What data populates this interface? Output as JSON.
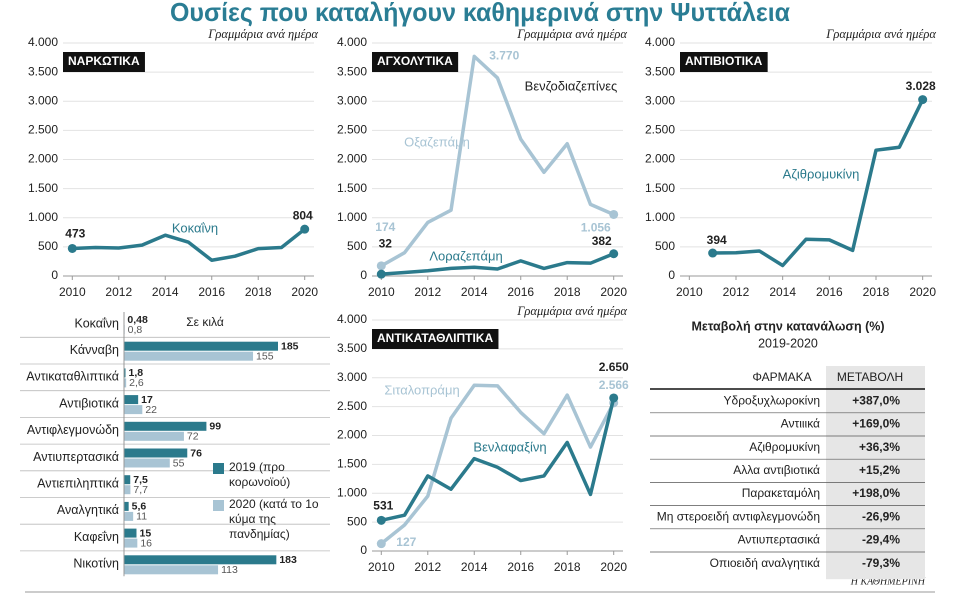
{
  "title": "Ουσίες που καταλήγουν καθημερινά στην Ψυττάλεια",
  "chart_data": [
    {
      "type": "line",
      "title": "ΝΑΡΚΩΤΙΚΑ",
      "subtitle": "Γραμμάρια ανά ημέρα",
      "x": [
        2010,
        2011,
        2012,
        2013,
        2014,
        2015,
        2016,
        2017,
        2018,
        2019,
        2020
      ],
      "xlim": [
        2009.6,
        2020.4
      ],
      "xticks": [
        2010,
        2012,
        2014,
        2016,
        2018,
        2020
      ],
      "ylim": [
        0,
        4000
      ],
      "yticks": [
        0,
        500,
        {
          "value": 1000,
          "label": "1.000"
        },
        {
          "value": 1500,
          "label": "1.500"
        },
        {
          "value": 2000,
          "label": "2.000"
        },
        {
          "value": 2500,
          "label": "2.500"
        },
        {
          "value": 3000,
          "label": "3.000"
        },
        {
          "value": 3500,
          "label": "3.500"
        },
        {
          "value": 4000,
          "label": "4.000"
        }
      ],
      "grid": true,
      "series": [
        {
          "name": "Κοκαΐνη",
          "color": "#2b7a8c",
          "values": [
            473,
            490,
            480,
            530,
            700,
            580,
            270,
            340,
            470,
            490,
            804
          ],
          "value_labels": [
            "473",
            null,
            null,
            null,
            null,
            null,
            null,
            null,
            null,
            null,
            "804"
          ]
        }
      ]
    },
    {
      "type": "line",
      "title": "ΑΓΧΟΛΥΤΙΚΑ",
      "subtitle": "Γραμμάρια ανά ημέρα",
      "annotation": "Βενζοδιαζεπίνες",
      "x": [
        2010,
        2011,
        2012,
        2013,
        2014,
        2015,
        2016,
        2017,
        2018,
        2019,
        2020
      ],
      "xlim": [
        2009.6,
        2020.4
      ],
      "xticks": [
        2010,
        2012,
        2014,
        2016,
        2018,
        2020
      ],
      "ylim": [
        0,
        4000
      ],
      "yticks": [
        0,
        500,
        {
          "value": 1000,
          "label": "1.000"
        },
        {
          "value": 1500,
          "label": "1.500"
        },
        {
          "value": 2000,
          "label": "2.000"
        },
        {
          "value": 2500,
          "label": "2.500"
        },
        {
          "value": 3000,
          "label": "3.000"
        },
        {
          "value": 3500,
          "label": "3.500"
        },
        {
          "value": 4000,
          "label": "4.000"
        }
      ],
      "grid": true,
      "series": [
        {
          "name": "Οξαζεπάμη",
          "color": "#a8c4d4",
          "values": [
            174,
            400,
            920,
            1130,
            3770,
            3400,
            2350,
            1780,
            2270,
            1230,
            1056
          ],
          "value_labels": [
            "174",
            null,
            null,
            null,
            "3.770",
            null,
            null,
            null,
            null,
            null,
            "1.056"
          ]
        },
        {
          "name": "Λοραζεπάμη",
          "color": "#2b7a8c",
          "values": [
            32,
            60,
            90,
            130,
            150,
            120,
            260,
            130,
            230,
            220,
            382
          ],
          "value_labels": [
            "32",
            null,
            null,
            null,
            null,
            null,
            null,
            null,
            null,
            null,
            "382"
          ]
        }
      ]
    },
    {
      "type": "line",
      "title": "ΑΝΤΙΒΙΟΤΙΚΑ",
      "subtitle": "Γραμμάρια ανά ημέρα",
      "x": [
        2010,
        2011,
        2012,
        2013,
        2014,
        2015,
        2016,
        2017,
        2018,
        2019,
        2020
      ],
      "xlim": [
        2009.6,
        2020.4
      ],
      "xticks": [
        2010,
        2012,
        2014,
        2016,
        2018,
        2020
      ],
      "ylim": [
        0,
        4000
      ],
      "yticks": [
        0,
        500,
        {
          "value": 1000,
          "label": "1.000"
        },
        {
          "value": 1500,
          "label": "1.500"
        },
        {
          "value": 2000,
          "label": "2.000"
        },
        {
          "value": 2500,
          "label": "2.500"
        },
        {
          "value": 3000,
          "label": "3.000"
        },
        {
          "value": 3500,
          "label": "3.500"
        },
        {
          "value": 4000,
          "label": "4.000"
        }
      ],
      "grid": true,
      "series": [
        {
          "name": "Αζιθρομυκίνη",
          "color": "#2b7a8c",
          "values": [
            null,
            394,
            400,
            430,
            180,
            630,
            620,
            440,
            2160,
            2210,
            3028
          ],
          "value_labels": [
            null,
            "394",
            null,
            null,
            null,
            null,
            null,
            null,
            null,
            null,
            "3.028"
          ]
        }
      ]
    },
    {
      "type": "line",
      "title": "ΑΝΤΙΚΑΤΑΘΛΙΠΤΙΚΑ",
      "subtitle": "Γραμμάρια ανά ημέρα",
      "x": [
        2010,
        2011,
        2012,
        2013,
        2014,
        2015,
        2016,
        2017,
        2018,
        2019,
        2020
      ],
      "xlim": [
        2009.6,
        2020.4
      ],
      "xticks": [
        2010,
        2012,
        2014,
        2016,
        2018,
        2020
      ],
      "ylim": [
        0,
        4000
      ],
      "yticks": [
        0,
        500,
        {
          "value": 1000,
          "label": "1.000"
        },
        {
          "value": 1500,
          "label": "1.500"
        },
        {
          "value": 2000,
          "label": "2.000"
        },
        {
          "value": 2500,
          "label": "2.500"
        },
        {
          "value": 3000,
          "label": "3.000"
        },
        {
          "value": 3500,
          "label": "3.500"
        },
        {
          "value": 4000,
          "label": "4.000"
        }
      ],
      "grid": true,
      "series": [
        {
          "name": "Σιταλοπράμη",
          "color": "#a8c4d4",
          "values": [
            127,
            450,
            950,
            2300,
            2870,
            2860,
            2400,
            2030,
            2700,
            1800,
            2566
          ],
          "value_labels": [
            "127",
            null,
            null,
            null,
            null,
            null,
            null,
            null,
            null,
            null,
            "2.566"
          ]
        },
        {
          "name": "Βενλαφαξίνη",
          "color": "#2b7a8c",
          "values": [
            531,
            620,
            1300,
            1070,
            1600,
            1450,
            1220,
            1300,
            1880,
            980,
            2650
          ],
          "value_labels": [
            "531",
            null,
            null,
            null,
            null,
            null,
            null,
            null,
            null,
            null,
            "2.650"
          ]
        }
      ]
    },
    {
      "type": "bar",
      "orientation": "horizontal",
      "subtitle": "Σε κιλά",
      "categories": [
        "Κοκαΐνη",
        "Κάνναβη",
        "Αντικαταθλιπτικά",
        "Αντιβιοτικά",
        "Αντιφλεγμονώδη",
        "Αντιυπερτασικά",
        "Αντιεπιληπτικά",
        "Αναλγητικά",
        "Καφεΐνη",
        "Νικοτίνη"
      ],
      "series": [
        {
          "name": "2019 (προ κορωνοϊού)",
          "color": "#2b7a8c",
          "values": [
            0.48,
            185,
            1.8,
            17,
            99,
            76,
            7.5,
            5.6,
            15,
            183
          ],
          "value_labels": [
            "0,48",
            "185",
            "1,8",
            "17",
            "99",
            "76",
            "7,5",
            "5,6",
            "15",
            "183"
          ]
        },
        {
          "name": "2020 (κατά το 1ο κύμα της πανδημίας)",
          "color": "#a8c4d4",
          "values": [
            0.8,
            155,
            2.6,
            22,
            72,
            55,
            7.7,
            11,
            16,
            113
          ],
          "value_labels": [
            "0,8",
            "155",
            "2,6",
            "22",
            "72",
            "55",
            "7,7",
            "11",
            "16",
            "113"
          ]
        }
      ]
    }
  ],
  "table": {
    "title": "Μεταβολή στην κατανάλωση (%)",
    "subtitle": "2019-2020",
    "columns": [
      "ΦΑΡΜΑΚΑ",
      "ΜΕΤΑΒΟΛΗ"
    ],
    "rows": [
      [
        "Υδροξυχλωροκίνη",
        "+387,0%"
      ],
      [
        "Αντιιικά",
        "+169,0%"
      ],
      [
        "Αζιθρομυκίνη",
        "+36,3%"
      ],
      [
        "Αλλα αντιβιοτικά",
        "+15,2%"
      ],
      [
        "Παρακεταμόλη",
        "+198,0%"
      ],
      [
        "Μη στεροειδή αντιφλεγμονώδη",
        "-26,9%"
      ],
      [
        "Αντιυπερτασικά",
        "-29,4%"
      ],
      [
        "Οπιοειδή αναλγητικά",
        "-79,3%"
      ]
    ]
  },
  "source": "Η ΚΑΘΗΜΕΡΙΝΗ"
}
